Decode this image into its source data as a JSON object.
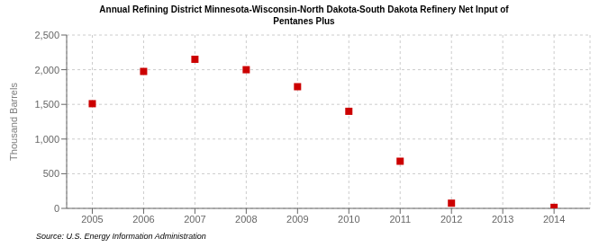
{
  "chart_data": {
    "type": "scatter",
    "title": "Annual Refining District Minnesota-Wisconsin-North Dakota-South Dakota Refinery Net Input of\nPentanes Plus",
    "ylabel": "Thousand Barrels",
    "annotations": [
      "Source: U.S. Energy Information Administration"
    ],
    "x": [
      2005,
      2006,
      2007,
      2008,
      2009,
      2010,
      2011,
      2012,
      2013,
      2014
    ],
    "values": [
      1510,
      1975,
      2150,
      2000,
      1755,
      1400,
      680,
      75,
      null,
      15
    ],
    "color": "#cc0000",
    "marker": "square",
    "xlim": [
      2004.5,
      2014.7
    ],
    "xticks": [
      2005,
      2006,
      2007,
      2008,
      2009,
      2010,
      2011,
      2012,
      2013,
      2014
    ],
    "ylim": [
      0,
      2500
    ],
    "yticks": [
      0,
      500,
      {
        "value": 1000,
        "label": "1,000"
      },
      {
        "value": 1500,
        "label": "1,500"
      },
      {
        "value": 2000,
        "label": "2,000"
      },
      {
        "value": 2500,
        "label": "2,500"
      }
    ],
    "grid": true
  }
}
